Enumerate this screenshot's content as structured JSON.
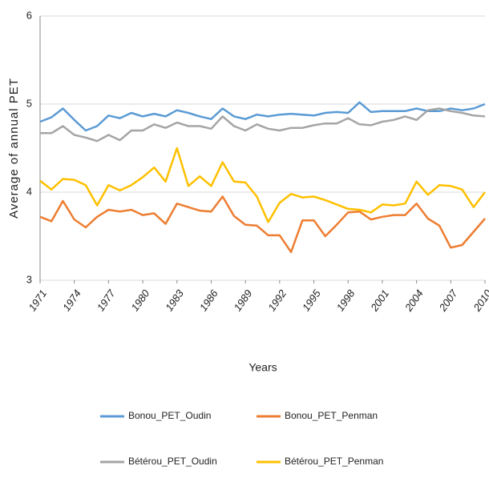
{
  "chart_data": {
    "type": "line",
    "y_label": "Average  of annual PET",
    "x_label": "Years",
    "x": [
      1971,
      1972,
      1973,
      1974,
      1975,
      1976,
      1977,
      1978,
      1979,
      1980,
      1981,
      1982,
      1983,
      1984,
      1985,
      1986,
      1987,
      1988,
      1989,
      1990,
      1991,
      1992,
      1993,
      1994,
      1995,
      1996,
      1997,
      1998,
      1999,
      2000,
      2001,
      2002,
      2003,
      2004,
      2005,
      2006,
      2007,
      2008,
      2009,
      2010
    ],
    "xlim": [
      1971,
      2010
    ],
    "xticks": [
      1971,
      1974,
      1977,
      1980,
      1983,
      1986,
      1989,
      1992,
      1995,
      1998,
      2001,
      2004,
      2007,
      2010
    ],
    "ylim": [
      3,
      6
    ],
    "yticks": [
      3,
      4,
      5,
      6
    ],
    "grid": true,
    "series": [
      {
        "name": "Bonou_PET_Oudin",
        "color": "#5b9bd5",
        "values": [
          4.8,
          4.85,
          4.95,
          4.82,
          4.7,
          4.75,
          4.87,
          4.84,
          4.9,
          4.86,
          4.89,
          4.86,
          4.93,
          4.9,
          4.86,
          4.83,
          4.95,
          4.86,
          4.83,
          4.88,
          4.86,
          4.88,
          4.89,
          4.88,
          4.87,
          4.9,
          4.91,
          4.9,
          5.02,
          4.91,
          4.92,
          4.92,
          4.92,
          4.95,
          4.92,
          4.92,
          4.95,
          4.93,
          4.95,
          5.0
        ]
      },
      {
        "name": "Bonou_PET_Penman",
        "color": "#ed7d31",
        "values": [
          3.72,
          3.67,
          3.9,
          3.69,
          3.6,
          3.72,
          3.8,
          3.78,
          3.8,
          3.74,
          3.76,
          3.64,
          3.87,
          3.83,
          3.79,
          3.78,
          3.95,
          3.73,
          3.63,
          3.62,
          3.51,
          3.51,
          3.32,
          3.68,
          3.68,
          3.5,
          3.63,
          3.77,
          3.78,
          3.69,
          3.72,
          3.74,
          3.74,
          3.87,
          3.7,
          3.62,
          3.37,
          3.4,
          3.55,
          3.7
        ]
      },
      {
        "name": "Bétérou_PET_Oudin",
        "color": "#a5a5a5",
        "values": [
          4.67,
          4.67,
          4.75,
          4.65,
          4.62,
          4.58,
          4.65,
          4.59,
          4.7,
          4.7,
          4.77,
          4.73,
          4.79,
          4.75,
          4.75,
          4.72,
          4.86,
          4.75,
          4.7,
          4.77,
          4.72,
          4.7,
          4.73,
          4.73,
          4.76,
          4.78,
          4.78,
          4.84,
          4.77,
          4.76,
          4.8,
          4.82,
          4.86,
          4.82,
          4.93,
          4.95,
          4.92,
          4.9,
          4.87,
          4.86
        ]
      },
      {
        "name": "Bétérou_PET_Penman",
        "color": "#ffc000",
        "values": [
          4.13,
          4.03,
          4.15,
          4.14,
          4.08,
          3.85,
          4.08,
          4.02,
          4.08,
          4.17,
          4.28,
          4.12,
          4.5,
          4.07,
          4.18,
          4.07,
          4.34,
          4.12,
          4.11,
          3.95,
          3.66,
          3.88,
          3.98,
          3.94,
          3.95,
          3.91,
          3.86,
          3.81,
          3.8,
          3.77,
          3.86,
          3.85,
          3.87,
          4.12,
          3.97,
          4.08,
          4.07,
          4.03,
          3.83,
          4.0
        ]
      }
    ]
  }
}
